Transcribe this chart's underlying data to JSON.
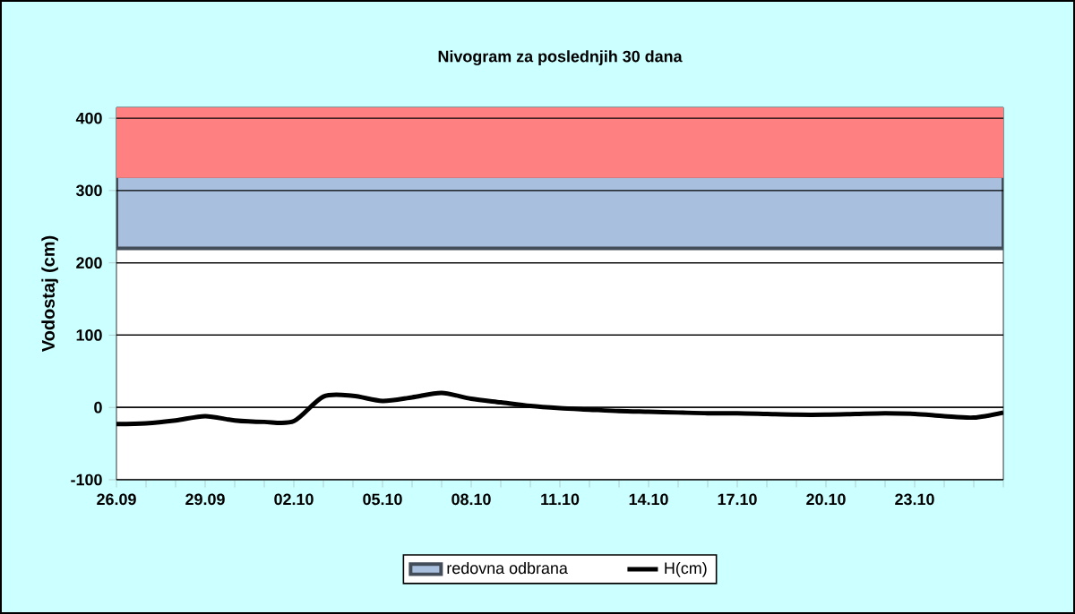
{
  "chart_data": {
    "type": "line",
    "title": "Nivogram za poslednjih 30 dana",
    "ylabel": "Vodostaj (cm)",
    "categories": [
      "26.09",
      null,
      null,
      "29.09",
      null,
      null,
      "02.10",
      null,
      null,
      "05.10",
      null,
      null,
      "08.10",
      null,
      null,
      "11.10",
      null,
      null,
      "14.10",
      null,
      null,
      "17.10",
      null,
      null,
      "20.10",
      null,
      null,
      "23.10",
      null,
      null,
      null
    ],
    "ylim": [
      -100,
      415
    ],
    "yticks": [
      -100,
      0,
      100,
      200,
      300,
      400
    ],
    "grid": "y",
    "legend": "bottom",
    "bands": [
      {
        "axis": "y",
        "from": 220,
        "to": 320,
        "label": "redovna odbrana",
        "color": "#a8c0de"
      },
      {
        "axis": "y",
        "from": 320,
        "to": 415,
        "color": "#ff8080"
      }
    ],
    "series": [
      {
        "name": "H(cm)",
        "color": "#000000",
        "values": [
          -23,
          -22,
          -18,
          -12,
          -18,
          -20,
          -19,
          15,
          16,
          9,
          14,
          20,
          12,
          7,
          2,
          -1,
          -3,
          -5,
          -6,
          -7,
          -8,
          -8,
          -9,
          -10,
          -10,
          -9,
          -8,
          -9,
          -12,
          -14,
          -7
        ]
      }
    ]
  }
}
